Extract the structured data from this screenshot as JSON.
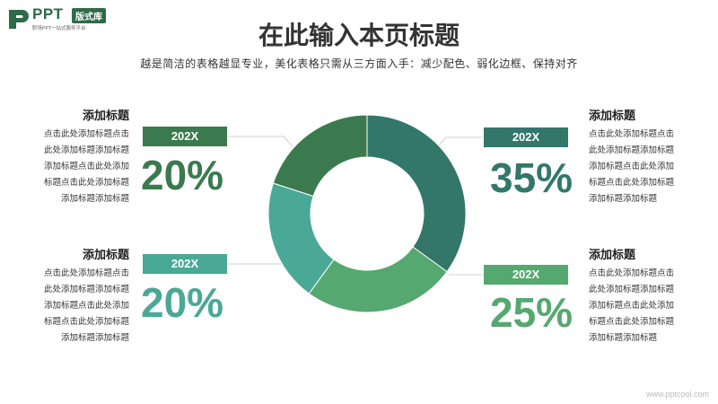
{
  "logo": {
    "text": "PPT",
    "badge": "版式库",
    "sub": "职场PPT一站式服务平台"
  },
  "title": "在此输入本页标题",
  "subtitle": "越是简洁的表格越显专业，美化表格只需从三方面入手：减少配色、弱化边框、保持对齐",
  "blocks": {
    "top_left": {
      "heading": "添加标题",
      "lines": [
        "点击此处添加标题点击",
        "此处添加标题添加标题",
        "添加标题点击此处添加",
        "标题点击此处添加标题",
        "添加标题添加标题"
      ]
    },
    "bottom_left": {
      "heading": "添加标题",
      "lines": [
        "点击此处添加标题点击",
        "此处添加标题添加标题",
        "添加标题点击此处添加",
        "标题点击此处添加标题",
        "添加标题添加标题"
      ]
    },
    "top_right": {
      "heading": "添加标题",
      "lines": [
        "点击此处添加标题点击",
        "此处添加标题添加标题",
        "添加标题点击此处添加",
        "标题点击此处添加标题",
        "添加标题添加标题"
      ]
    },
    "bottom_right": {
      "heading": "添加标题",
      "lines": [
        "点击此处添加标题点击",
        "此处添加标题添加标题",
        "添加标题点击此处添加",
        "标题点击此处添加标题",
        "添加标题添加标题"
      ]
    }
  },
  "chart_data": {
    "type": "pie",
    "donut": true,
    "categories": [
      "202X",
      "202X",
      "202X",
      "202X"
    ],
    "values": [
      35,
      25,
      20,
      20
    ],
    "labels": [
      "35%",
      "25%",
      "20%",
      "20%"
    ],
    "colors": [
      "#33776b",
      "#55a870",
      "#4aa896",
      "#3b7a4f"
    ]
  },
  "watermark": "www.pptcool.com"
}
